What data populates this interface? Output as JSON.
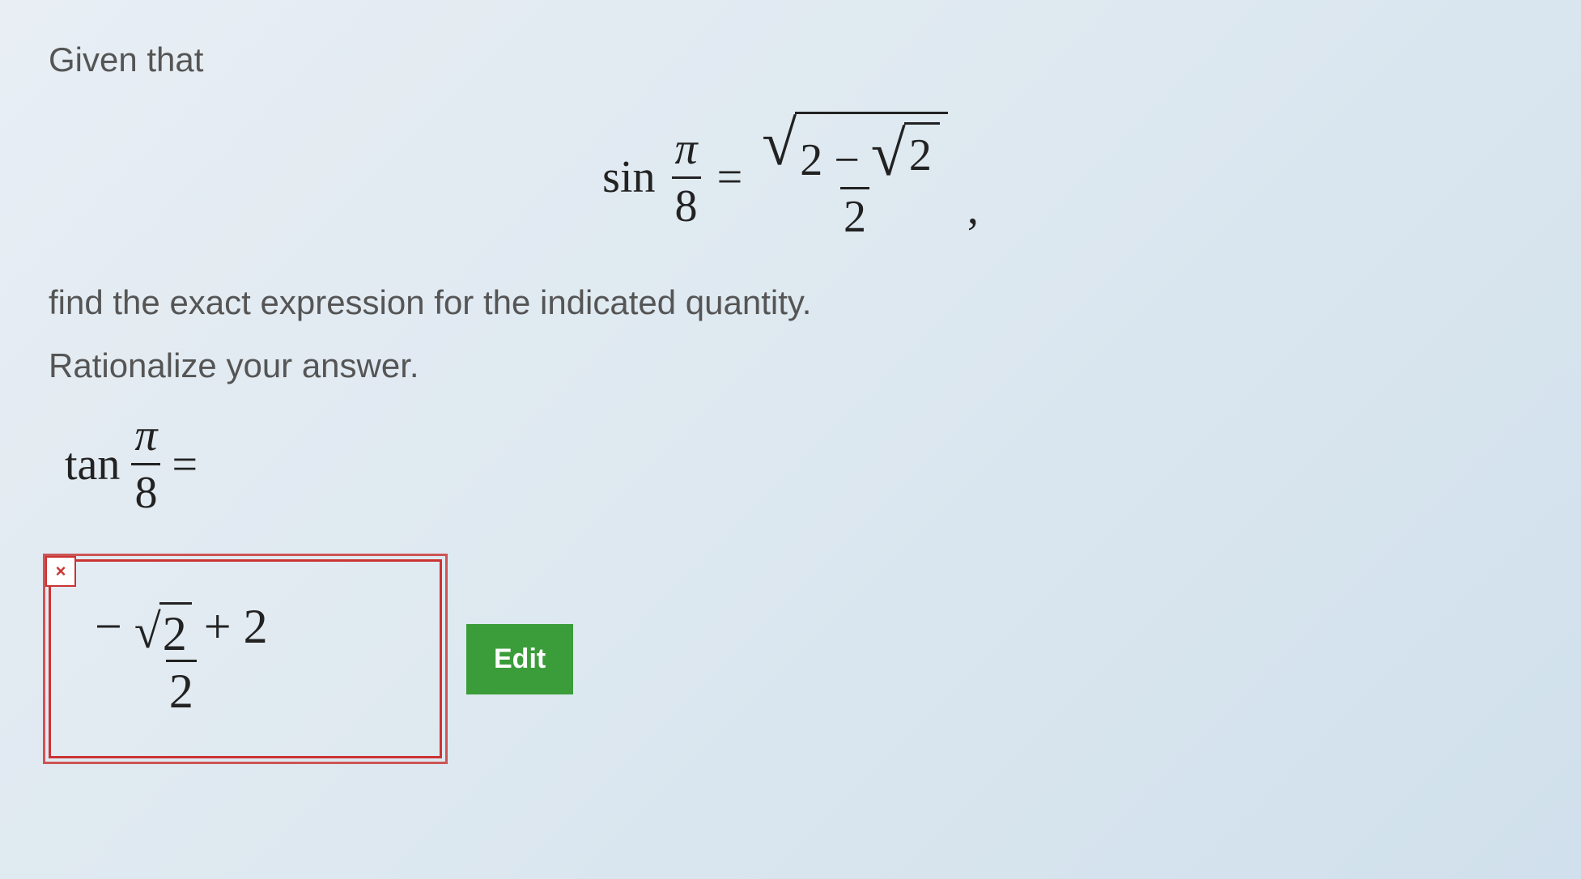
{
  "text": {
    "given": "Given that",
    "find": "find the exact expression for the indicated quantity.",
    "rationalize": "Rationalize your answer."
  },
  "equation": {
    "func": "sin",
    "arg_num": "π",
    "arg_den": "8",
    "eq": "=",
    "rhs_radicand_a": "2",
    "rhs_radicand_minus": "−",
    "rhs_inner_radicand": "2",
    "rhs_den": "2",
    "trailing": ","
  },
  "prompt": {
    "func": "tan",
    "arg_num": "π",
    "arg_den": "8",
    "eq": "="
  },
  "answer": {
    "neg": "−",
    "radicand": "2",
    "plus": "+",
    "addend": "2",
    "den": "2",
    "status": "incorrect",
    "badge": "×"
  },
  "buttons": {
    "edit": "Edit"
  },
  "style": {
    "text_color": "#555",
    "math_color": "#222",
    "error_border": "#c33",
    "edit_bg": "#3a9d3a",
    "edit_fg": "#ffffff",
    "body_fontsize_pt": 32,
    "math_fontsize_pt": 42
  }
}
